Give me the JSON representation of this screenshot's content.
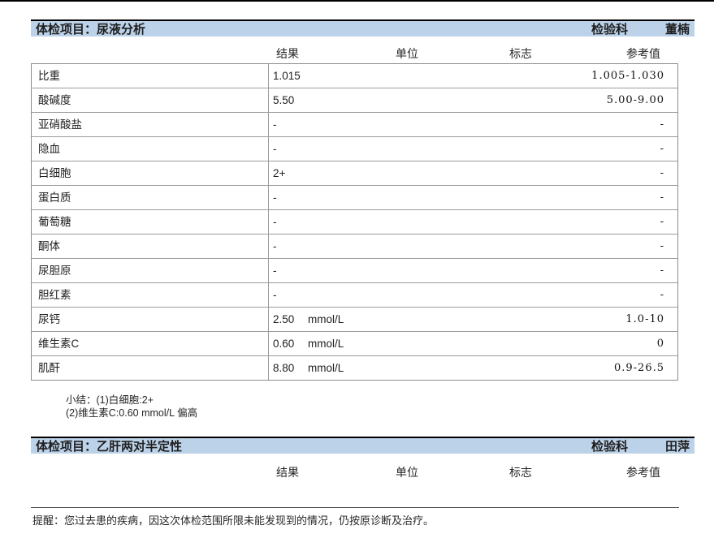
{
  "columns": {
    "result": "结果",
    "unit": "单位",
    "flag": "标志",
    "reference": "参考值"
  },
  "sections": [
    {
      "title": "体检项目：尿液分析",
      "department": "检验科",
      "examiner": "董楠",
      "rows": [
        {
          "name": "比重",
          "result": "1.015",
          "unit": "",
          "flag": "",
          "reference": "1.005-1.030"
        },
        {
          "name": "酸碱度",
          "result": "5.50",
          "unit": "",
          "flag": "",
          "reference": "5.00-9.00"
        },
        {
          "name": "亚硝酸盐",
          "result": "-",
          "unit": "",
          "flag": "",
          "reference": "-"
        },
        {
          "name": "隐血",
          "result": "-",
          "unit": "",
          "flag": "",
          "reference": "-"
        },
        {
          "name": "白细胞",
          "result": "2+",
          "unit": "",
          "flag": "",
          "reference": "-"
        },
        {
          "name": "蛋白质",
          "result": "-",
          "unit": "",
          "flag": "",
          "reference": "-"
        },
        {
          "name": "葡萄糖",
          "result": "-",
          "unit": "",
          "flag": "",
          "reference": "-"
        },
        {
          "name": "酮体",
          "result": "-",
          "unit": "",
          "flag": "",
          "reference": "-"
        },
        {
          "name": "尿胆原",
          "result": "-",
          "unit": "",
          "flag": "",
          "reference": "-"
        },
        {
          "name": "胆红素",
          "result": "-",
          "unit": "",
          "flag": "",
          "reference": "-"
        },
        {
          "name": "尿钙",
          "result": "2.50",
          "unit": "mmol/L",
          "flag": "",
          "reference": "1.0-10"
        },
        {
          "name": "维生素C",
          "result": "0.60",
          "unit": "mmol/L",
          "flag": "",
          "reference": "0"
        },
        {
          "name": "肌酐",
          "result": "8.80",
          "unit": "mmol/L",
          "flag": "",
          "reference": "0.9-26.5"
        }
      ],
      "summary_lines": [
        "小结：(1)白细胞:2+",
        "(2)维生素C:0.60 mmol/L 偏高"
      ]
    },
    {
      "title": "体检项目：乙肝两对半定性",
      "department": "检验科",
      "examiner": "田萍",
      "rows": []
    }
  ],
  "reminder": "提醒：您过去患的疾病，因这次体检范围所限未能发现到的情况，仍按原诊断及治疗。"
}
